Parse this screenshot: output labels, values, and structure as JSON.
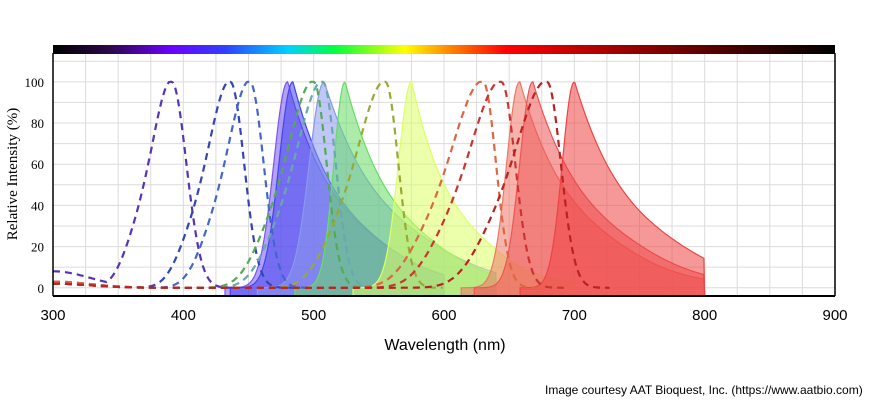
{
  "chart_data": {
    "type": "area",
    "xlabel": "Wavelength (nm)",
    "ylabel": "Relative Intensity (%)",
    "xlim": [
      300,
      900
    ],
    "ylim": [
      -4,
      114
    ],
    "xticks": [
      300,
      400,
      500,
      600,
      700,
      800,
      900
    ],
    "yticks": [
      0,
      20,
      40,
      60,
      80,
      100
    ],
    "grid": true,
    "spectrum_bar": true,
    "series": [
      {
        "kind": "excitation",
        "color": "#5533bb",
        "peak": 391,
        "left_width": 22,
        "right_width": 16,
        "floor": 8
      },
      {
        "kind": "excitation",
        "color": "#3344bb",
        "peak": 436,
        "left_width": 24,
        "right_width": 15,
        "floor": 3
      },
      {
        "kind": "excitation",
        "color": "#4466cc",
        "peak": 451,
        "left_width": 24,
        "right_width": 15,
        "floor": 2
      },
      {
        "kind": "excitation",
        "color": "#55aa55",
        "peak": 500,
        "left_width": 28,
        "right_width": 14,
        "floor": 2
      },
      {
        "kind": "excitation",
        "color": "#66aaaa",
        "peak": 507,
        "left_width": 28,
        "right_width": 14,
        "floor": 2
      },
      {
        "kind": "excitation",
        "color": "#99aa33",
        "peak": 555,
        "left_width": 30,
        "right_width": 14,
        "floor": 2
      },
      {
        "kind": "excitation",
        "color": "#dd6644",
        "peak": 630,
        "left_width": 34,
        "right_width": 14,
        "floor": 3
      },
      {
        "kind": "excitation",
        "color": "#cc3333",
        "peak": 644,
        "left_width": 34,
        "right_width": 15,
        "floor": 2
      },
      {
        "kind": "excitation",
        "color": "#bb2222",
        "peak": 679,
        "left_width": 34,
        "right_width": 15,
        "floor": 2
      },
      {
        "kind": "emission",
        "color": "#7755ee",
        "peak": 480,
        "left_width": 15,
        "right_width": 42,
        "x_end": 600
      },
      {
        "kind": "emission",
        "color": "#4444ee",
        "peak": 484,
        "left_width": 15,
        "right_width": 40,
        "x_end": 600
      },
      {
        "kind": "emission",
        "color": "#8899ee",
        "peak": 508,
        "left_width": 16,
        "right_width": 48,
        "x_end": 640
      },
      {
        "kind": "emission",
        "color": "#66dd66",
        "peak": 524,
        "left_width": 12,
        "right_width": 40,
        "x_end": 640
      },
      {
        "kind": "emission",
        "color": "#ddff66",
        "peak": 575,
        "left_width": 14,
        "right_width": 34,
        "x_end": 700
      },
      {
        "kind": "emission",
        "color": "#ee7766",
        "peak": 658,
        "left_width": 14,
        "right_width": 44,
        "x_end": 800
      },
      {
        "kind": "emission",
        "color": "#ee5555",
        "peak": 668,
        "left_width": 14,
        "right_width": 46,
        "x_end": 800
      },
      {
        "kind": "emission",
        "color": "#ee4444",
        "peak": 700,
        "left_width": 13,
        "right_width": 46,
        "x_end": 800
      }
    ]
  },
  "footer": {
    "credit": "Image courtesy AAT Bioquest, Inc. (https://www.aatbio.com)"
  }
}
